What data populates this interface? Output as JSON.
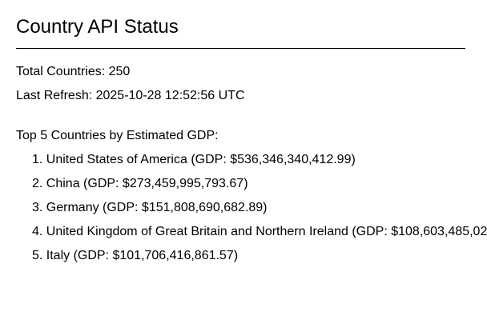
{
  "header": {
    "title": "Country API Status"
  },
  "stats": {
    "total_countries": "Total Countries: 250",
    "last_refresh": "Last Refresh: 2025-10-28 12:52:56 UTC"
  },
  "top_countries": {
    "heading": "Top 5 Countries by Estimated GDP:",
    "items": [
      "1. United States of America (GDP: $536,346,340,412.99)",
      "2. China (GDP: $273,459,995,793.67)",
      "3. Germany (GDP: $151,808,690,682.89)",
      "4. United Kingdom of Great Britain and Northern Ireland (GDP: $108,603,485,02",
      "5. Italy (GDP: $101,706,416,861.57)"
    ]
  }
}
